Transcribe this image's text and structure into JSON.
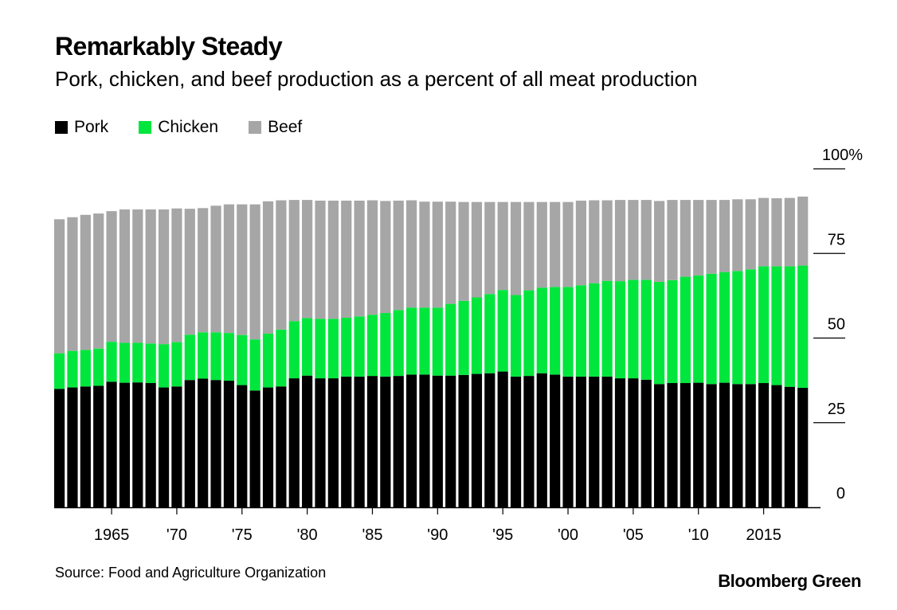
{
  "title": "Remarkably Steady",
  "subtitle": "Pork, chicken, and beef production as a percent of all meat production",
  "legend": [
    {
      "label": "Pork",
      "color": "#000000"
    },
    {
      "label": "Chicken",
      "color": "#00e63c"
    },
    {
      "label": "Beef",
      "color": "#a6a6a6"
    }
  ],
  "source": "Source: Food and Agriculture Organization",
  "brand": "Bloomberg Green",
  "chart_data": {
    "type": "bar",
    "stacked": true,
    "years": [
      1961,
      1962,
      1963,
      1964,
      1965,
      1966,
      1967,
      1968,
      1969,
      1970,
      1971,
      1972,
      1973,
      1974,
      1975,
      1976,
      1977,
      1978,
      1979,
      1980,
      1981,
      1982,
      1983,
      1984,
      1985,
      1986,
      1987,
      1988,
      1989,
      1990,
      1991,
      1992,
      1993,
      1994,
      1995,
      1996,
      1997,
      1998,
      1999,
      2000,
      2001,
      2002,
      2003,
      2004,
      2005,
      2006,
      2007,
      2008,
      2009,
      2010,
      2011,
      2012,
      2013,
      2014,
      2015,
      2016,
      2017,
      2018
    ],
    "x_tick_labels": [
      "1965",
      "'70",
      "'75",
      "'80",
      "'85",
      "'90",
      "'95",
      "'00",
      "'05",
      "'10",
      "2015"
    ],
    "x_tick_years": [
      1965,
      1970,
      1975,
      1980,
      1985,
      1990,
      1995,
      2000,
      2005,
      2010,
      2015
    ],
    "y_ticks": [
      0,
      25,
      50,
      75,
      100
    ],
    "y_tick_labels": [
      "0",
      "25",
      "50",
      "75",
      "100%"
    ],
    "ylim": [
      0,
      100
    ],
    "series": [
      {
        "name": "Pork",
        "color": "#000000",
        "values": [
          35.0,
          35.4,
          35.7,
          35.9,
          37.1,
          36.8,
          36.9,
          36.7,
          35.4,
          35.7,
          37.6,
          38.0,
          37.6,
          37.4,
          36.1,
          34.5,
          35.4,
          35.7,
          38.1,
          38.9,
          38.1,
          38.1,
          38.6,
          38.6,
          38.8,
          38.6,
          38.8,
          39.2,
          39.2,
          38.9,
          38.9,
          39.1,
          39.4,
          39.6,
          40.1,
          38.6,
          38.8,
          39.6,
          39.2,
          38.6,
          38.6,
          38.6,
          38.6,
          38.1,
          38.1,
          37.7,
          36.4,
          36.7,
          36.7,
          36.8,
          36.4,
          36.8,
          36.4,
          36.4,
          36.7,
          36.1,
          35.6,
          35.3
        ]
      },
      {
        "name": "Chicken",
        "color": "#00e63c",
        "values": [
          10.5,
          10.8,
          10.8,
          11.0,
          11.8,
          11.8,
          11.7,
          11.7,
          12.8,
          13.1,
          13.4,
          13.7,
          14.1,
          14.1,
          14.8,
          15.1,
          15.9,
          16.8,
          16.9,
          17.0,
          17.6,
          17.6,
          17.4,
          17.8,
          18.1,
          18.8,
          19.5,
          19.8,
          19.8,
          20.1,
          21.2,
          21.9,
          22.6,
          23.4,
          24.1,
          24.1,
          25.3,
          25.3,
          25.9,
          26.5,
          27.0,
          27.6,
          28.3,
          28.7,
          29.1,
          29.5,
          30.2,
          30.4,
          31.4,
          31.7,
          32.6,
          32.7,
          33.4,
          33.9,
          34.5,
          35.1,
          35.6,
          36.1
        ]
      },
      {
        "name": "Beef",
        "color": "#a6a6a6",
        "values": [
          39.6,
          39.5,
          39.9,
          39.9,
          38.6,
          39.4,
          39.4,
          39.6,
          39.8,
          39.5,
          37.2,
          36.7,
          37.4,
          38.0,
          38.6,
          39.9,
          39.1,
          38.2,
          35.8,
          34.9,
          34.9,
          34.9,
          34.6,
          34.2,
          33.8,
          33.1,
          32.3,
          31.7,
          31.3,
          31.3,
          30.2,
          29.2,
          28.2,
          27.2,
          26.0,
          27.5,
          26.1,
          25.3,
          25.1,
          25.1,
          25.0,
          24.5,
          23.8,
          24.0,
          23.6,
          23.6,
          23.9,
          23.7,
          22.7,
          22.3,
          21.8,
          21.3,
          21.2,
          20.7,
          20.2,
          20.1,
          20.2,
          20.4
        ]
      }
    ]
  }
}
